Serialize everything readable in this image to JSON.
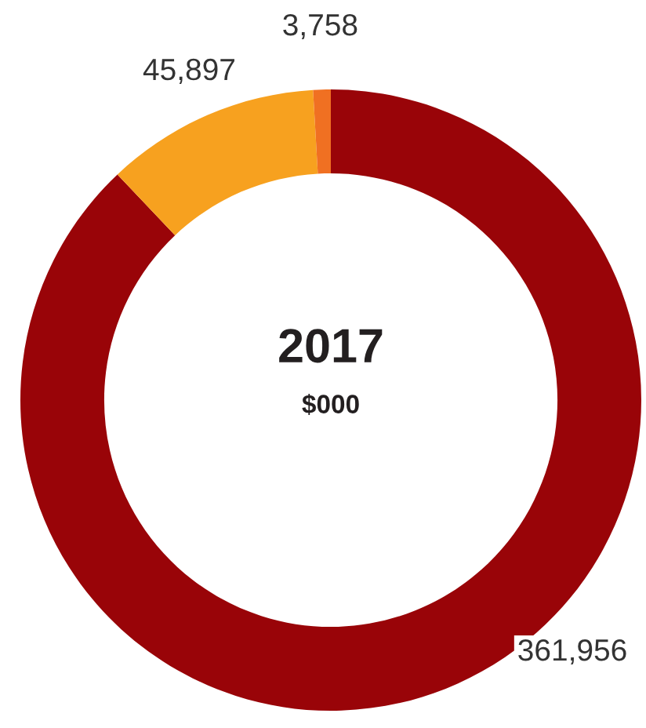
{
  "chart_data": {
    "type": "donut",
    "title": "2017",
    "subtitle": "$000",
    "categories": [
      null,
      null,
      null
    ],
    "values": [
      361956,
      45897,
      3758
    ],
    "colors": [
      "#990408",
      "#f7a11f",
      "#f07022"
    ],
    "value_labels": [
      "361,956",
      "45,897",
      "3,758"
    ],
    "legend": false
  }
}
